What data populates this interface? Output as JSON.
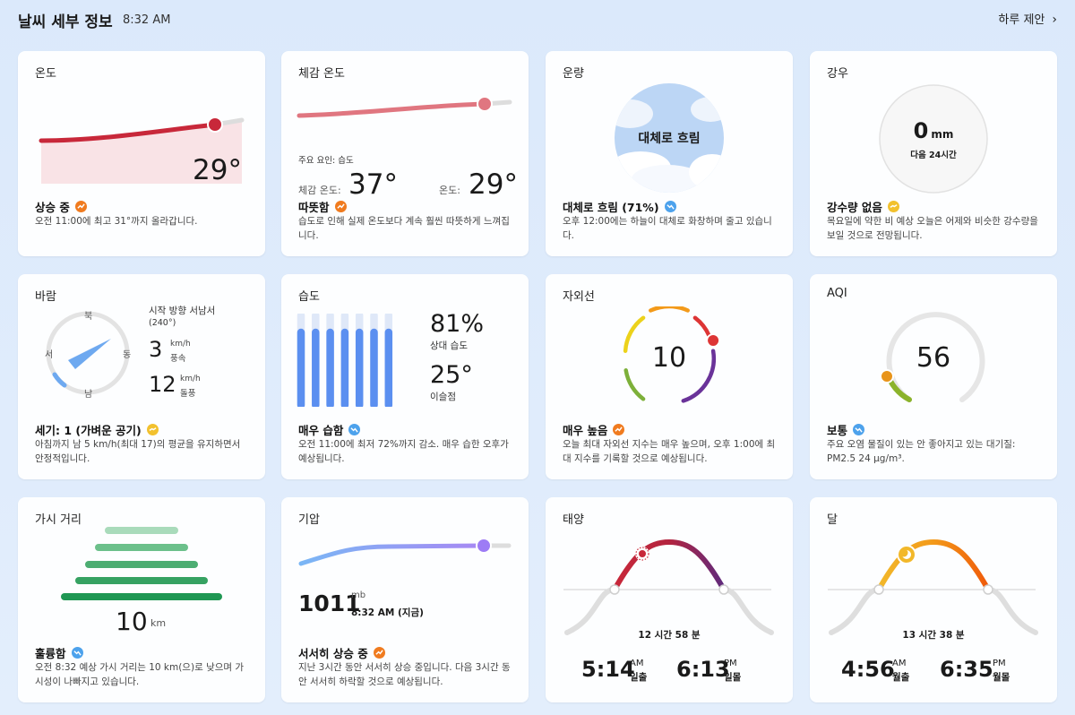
{
  "header": {
    "title": "날씨 세부 정보",
    "time": "8:32 AM",
    "daily_link": "하루 제안"
  },
  "temp": {
    "title": "온도",
    "value": "29°",
    "status": "상승 중",
    "desc": "오전 11:00에 최고 31°까지 올라갑니다."
  },
  "feels": {
    "title": "체감 온도",
    "factor": "주요 요인: 습도",
    "feels_label": "체감 온도:",
    "feels_value": "37°",
    "temp_label": "온도:",
    "temp_value": "29°",
    "status": "따뜻함",
    "desc": "습도로 인해 실제 온도보다 계속 훨씬 따뜻하게 느껴집니다."
  },
  "cloud": {
    "title": "운량",
    "center": "대체로 흐림",
    "status": "대체로 흐림 (71%)",
    "desc": "오후 12:00에는 하늘이 대체로 화창하며 줄고 있습니다."
  },
  "rain": {
    "title": "강우",
    "value": "0",
    "unit": "mm",
    "sub": "다음 24시간",
    "status": "강수량 없음",
    "desc": "목요일에 약한 비 예상 오늘은 어제와 비슷한 강수량을 보일 것으로 전망됩니다."
  },
  "wind": {
    "title": "바람",
    "dir_n": "북",
    "dir_s": "남",
    "dir_e": "동",
    "dir_w": "서",
    "direction_label": "시작 방향 서남서",
    "direction_deg": "(240°)",
    "speed": "3",
    "speed_unit": "km/h",
    "speed_label": "풍속",
    "gust": "12",
    "gust_unit": "km/h",
    "gust_label": "돌풍",
    "status": "세기: 1 (가벼운 공기)",
    "desc": "아침까지 남 5 km/h(최대 17)의 평균을 유지하면서 안정적입니다."
  },
  "humidity": {
    "title": "습도",
    "value": "81%",
    "value_label": "상대 습도",
    "dew": "25°",
    "dew_label": "이슬점",
    "status": "매우 습함",
    "desc": "오전 11:00에 최저 72%까지 감소. 매우 습한 오후가 예상됩니다."
  },
  "uv": {
    "title": "자외선",
    "value": "10",
    "status": "매우 높음",
    "desc": "오늘 최대 자외선 지수는 매우 높으며, 오후 1:00에 최대 지수를 기록할 것으로 예상됩니다."
  },
  "aqi": {
    "title": "AQI",
    "value": "56",
    "status": "보통",
    "desc": "주요 오염 물질이 있는 안 좋아지고 있는 대기질: PM2.5 24 µg/m³."
  },
  "visibility": {
    "title": "가시 거리",
    "value": "10",
    "unit": "km",
    "status": "훌륭함",
    "desc": "오전 8:32 예상 가시 거리는 10 km(으)로 낮으며 가시성이 나빠지고 있습니다."
  },
  "pressure": {
    "title": "기압",
    "value": "1011",
    "unit": "mb",
    "time": "8:32 AM (지금)",
    "status": "서서히 상승 중",
    "desc": "지난 3시간 동안 서서히 상승 중입니다. 다음 3시간 동안 서서히 하락할 것으로 예상됩니다."
  },
  "sun": {
    "title": "태양",
    "duration": "12 시간 58 분",
    "rise_time": "5:14",
    "rise_ampm": "AM",
    "rise_label": "일출",
    "set_time": "6:13",
    "set_ampm": "PM",
    "set_label": "일몰"
  },
  "moon": {
    "title": "달",
    "duration": "13 시간 38 분",
    "rise_time": "4:56",
    "rise_ampm": "AM",
    "rise_label": "월출",
    "set_time": "6:35",
    "set_ampm": "PM",
    "set_label": "월몰"
  },
  "colors": {
    "temp_red": "#c8283a",
    "humidity_blue": "#5b8ff0",
    "pressure_purple": "#9d7cf5",
    "visibility_green": "#2e9e5b",
    "trend_orange": "#f07b1f",
    "trend_blue": "#4da2ec",
    "trend_yellow": "#f2c12e"
  }
}
